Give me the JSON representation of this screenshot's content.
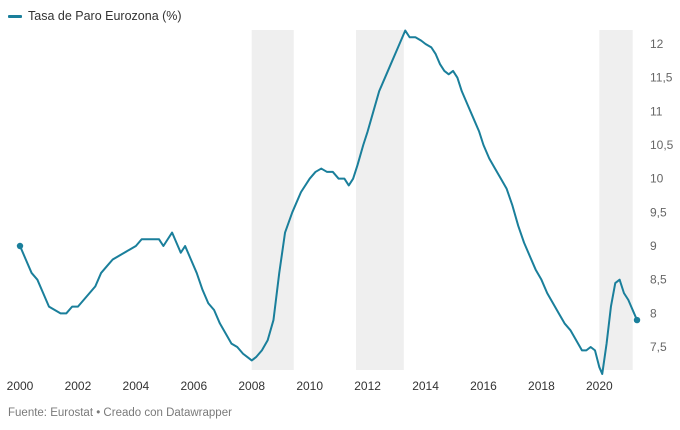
{
  "legend": {
    "label": "Tasa de Paro Eurozona (%)",
    "color": "#1a7f9b"
  },
  "footer": {
    "source": "Fuente: Eurostat • Creado con Datawrapper"
  },
  "chart_data": {
    "type": "line",
    "title": "",
    "xlabel": "",
    "ylabel": "",
    "xlim": [
      2000.0,
      2021.3
    ],
    "ylim": [
      7.1,
      12.2
    ],
    "x_ticks": [
      2000,
      2002,
      2004,
      2006,
      2008,
      2010,
      2012,
      2014,
      2016,
      2018,
      2020
    ],
    "x_tick_labels": [
      "2000",
      "2002",
      "2004",
      "2006",
      "2008",
      "2010",
      "2012",
      "2014",
      "2016",
      "2018",
      "2020"
    ],
    "y_ticks": [
      7.5,
      8,
      8.5,
      9,
      9.5,
      10,
      10.5,
      11,
      11.5,
      12
    ],
    "y_tick_labels": [
      "7,5",
      "8",
      "8,5",
      "9",
      "9,5",
      "10",
      "10,5",
      "11",
      "11,5",
      "12"
    ],
    "y_axis_position": "right",
    "grid": false,
    "shaded_periods": [
      [
        2008.0,
        2009.45
      ],
      [
        2011.6,
        2013.25
      ],
      [
        2020.0,
        2021.15
      ]
    ],
    "shade_color": "#efefef",
    "line_color": "#1a7f9b",
    "series": [
      {
        "name": "Tasa de Paro Eurozona (%)",
        "points": [
          [
            2000.0,
            9.0
          ],
          [
            2000.2,
            8.8
          ],
          [
            2000.4,
            8.6
          ],
          [
            2000.6,
            8.5
          ],
          [
            2000.8,
            8.3
          ],
          [
            2001.0,
            8.1
          ],
          [
            2001.2,
            8.05
          ],
          [
            2001.4,
            8.0
          ],
          [
            2001.6,
            8.0
          ],
          [
            2001.8,
            8.1
          ],
          [
            2002.0,
            8.1
          ],
          [
            2002.2,
            8.2
          ],
          [
            2002.4,
            8.3
          ],
          [
            2002.6,
            8.4
          ],
          [
            2002.8,
            8.6
          ],
          [
            2003.0,
            8.7
          ],
          [
            2003.2,
            8.8
          ],
          [
            2003.4,
            8.85
          ],
          [
            2003.6,
            8.9
          ],
          [
            2003.8,
            8.95
          ],
          [
            2004.0,
            9.0
          ],
          [
            2004.2,
            9.1
          ],
          [
            2004.5,
            9.1
          ],
          [
            2004.8,
            9.1
          ],
          [
            2004.95,
            9.0
          ],
          [
            2005.1,
            9.1
          ],
          [
            2005.25,
            9.2
          ],
          [
            2005.4,
            9.05
          ],
          [
            2005.55,
            8.9
          ],
          [
            2005.7,
            9.0
          ],
          [
            2005.9,
            8.8
          ],
          [
            2006.1,
            8.6
          ],
          [
            2006.3,
            8.35
          ],
          [
            2006.5,
            8.15
          ],
          [
            2006.7,
            8.05
          ],
          [
            2006.9,
            7.85
          ],
          [
            2007.1,
            7.7
          ],
          [
            2007.3,
            7.55
          ],
          [
            2007.5,
            7.5
          ],
          [
            2007.7,
            7.4
          ],
          [
            2007.85,
            7.35
          ],
          [
            2008.0,
            7.3
          ],
          [
            2008.15,
            7.35
          ],
          [
            2008.35,
            7.45
          ],
          [
            2008.55,
            7.6
          ],
          [
            2008.75,
            7.9
          ],
          [
            2008.95,
            8.6
          ],
          [
            2009.15,
            9.2
          ],
          [
            2009.4,
            9.5
          ],
          [
            2009.7,
            9.8
          ],
          [
            2010.0,
            10.0
          ],
          [
            2010.2,
            10.1
          ],
          [
            2010.4,
            10.15
          ],
          [
            2010.6,
            10.1
          ],
          [
            2010.8,
            10.1
          ],
          [
            2011.0,
            10.0
          ],
          [
            2011.2,
            10.0
          ],
          [
            2011.35,
            9.9
          ],
          [
            2011.5,
            10.0
          ],
          [
            2011.65,
            10.2
          ],
          [
            2011.85,
            10.5
          ],
          [
            2012.0,
            10.7
          ],
          [
            2012.2,
            11.0
          ],
          [
            2012.4,
            11.3
          ],
          [
            2012.6,
            11.5
          ],
          [
            2012.8,
            11.7
          ],
          [
            2013.0,
            11.9
          ],
          [
            2013.15,
            12.05
          ],
          [
            2013.3,
            12.2
          ],
          [
            2013.45,
            12.1
          ],
          [
            2013.65,
            12.1
          ],
          [
            2013.85,
            12.05
          ],
          [
            2014.0,
            12.0
          ],
          [
            2014.2,
            11.95
          ],
          [
            2014.35,
            11.85
          ],
          [
            2014.5,
            11.7
          ],
          [
            2014.65,
            11.6
          ],
          [
            2014.8,
            11.55
          ],
          [
            2014.95,
            11.6
          ],
          [
            2015.1,
            11.5
          ],
          [
            2015.25,
            11.3
          ],
          [
            2015.45,
            11.1
          ],
          [
            2015.65,
            10.9
          ],
          [
            2015.85,
            10.7
          ],
          [
            2016.0,
            10.5
          ],
          [
            2016.2,
            10.3
          ],
          [
            2016.4,
            10.15
          ],
          [
            2016.6,
            10.0
          ],
          [
            2016.8,
            9.85
          ],
          [
            2017.0,
            9.6
          ],
          [
            2017.2,
            9.3
          ],
          [
            2017.4,
            9.05
          ],
          [
            2017.6,
            8.85
          ],
          [
            2017.8,
            8.65
          ],
          [
            2018.0,
            8.5
          ],
          [
            2018.2,
            8.3
          ],
          [
            2018.4,
            8.15
          ],
          [
            2018.6,
            8.0
          ],
          [
            2018.8,
            7.85
          ],
          [
            2019.0,
            7.75
          ],
          [
            2019.2,
            7.6
          ],
          [
            2019.4,
            7.45
          ],
          [
            2019.55,
            7.45
          ],
          [
            2019.7,
            7.5
          ],
          [
            2019.85,
            7.45
          ],
          [
            2020.0,
            7.2
          ],
          [
            2020.1,
            7.1
          ],
          [
            2020.25,
            7.55
          ],
          [
            2020.4,
            8.1
          ],
          [
            2020.55,
            8.45
          ],
          [
            2020.7,
            8.5
          ],
          [
            2020.85,
            8.3
          ],
          [
            2021.0,
            8.2
          ],
          [
            2021.1,
            8.1
          ],
          [
            2021.2,
            8.0
          ],
          [
            2021.3,
            7.9
          ]
        ]
      }
    ]
  }
}
